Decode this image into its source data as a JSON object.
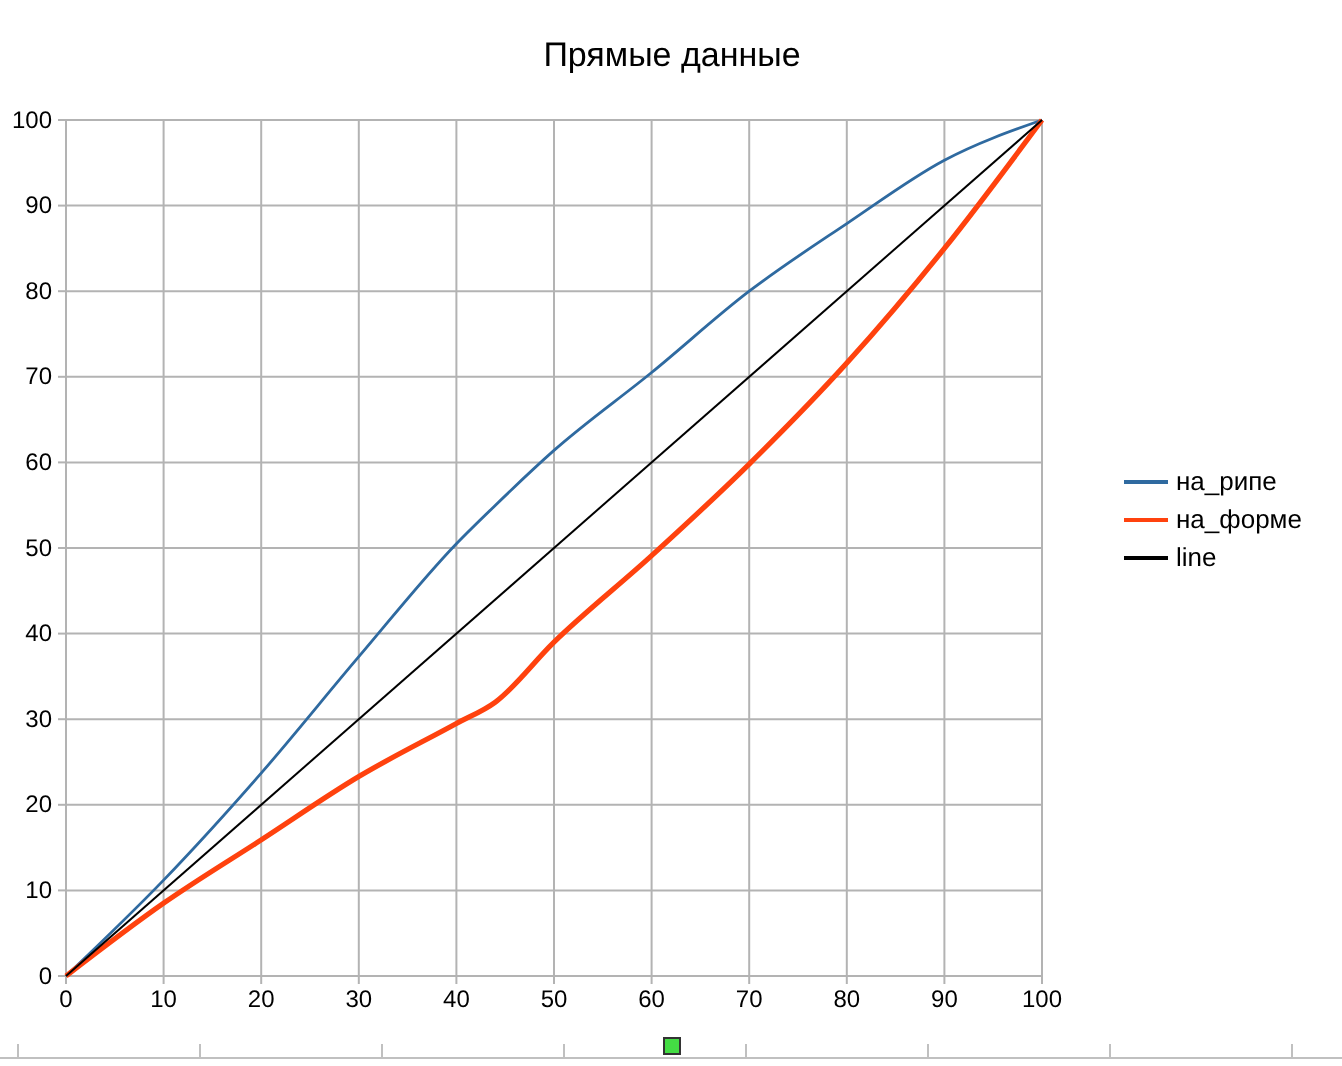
{
  "chart_data": {
    "type": "line",
    "title": "Прямые данные",
    "xlim": [
      0,
      100
    ],
    "xticks": [
      0,
      10,
      20,
      30,
      40,
      50,
      60,
      70,
      80,
      90,
      100
    ],
    "ylim": [
      0,
      100
    ],
    "yticks": [
      0,
      10,
      20,
      30,
      40,
      50,
      60,
      70,
      80,
      90,
      100
    ],
    "grid": true,
    "legend": "right",
    "marker": "none",
    "series": [
      {
        "name": "на_рипе",
        "color": "#2f6aa0",
        "x": [
          0,
          10,
          20,
          30,
          40,
          44,
          50,
          60,
          70,
          80,
          90,
          100
        ],
        "values": [
          0,
          11.2,
          23.7,
          37.3,
          50.5,
          55,
          61.4,
          70.5,
          80,
          87.9,
          95.3,
          100
        ]
      },
      {
        "name": "на_форме",
        "color": "#ff420e",
        "x": [
          0,
          10,
          20,
          30,
          40,
          44,
          50,
          60,
          70,
          80,
          90,
          100
        ],
        "values": [
          0,
          8.5,
          15.9,
          23.3,
          29.5,
          32,
          39,
          49.1,
          59.8,
          71.6,
          85,
          100
        ]
      },
      {
        "name": "line",
        "color": "#000000",
        "x": [
          0,
          100
        ],
        "values": [
          0,
          100
        ]
      }
    ]
  }
}
